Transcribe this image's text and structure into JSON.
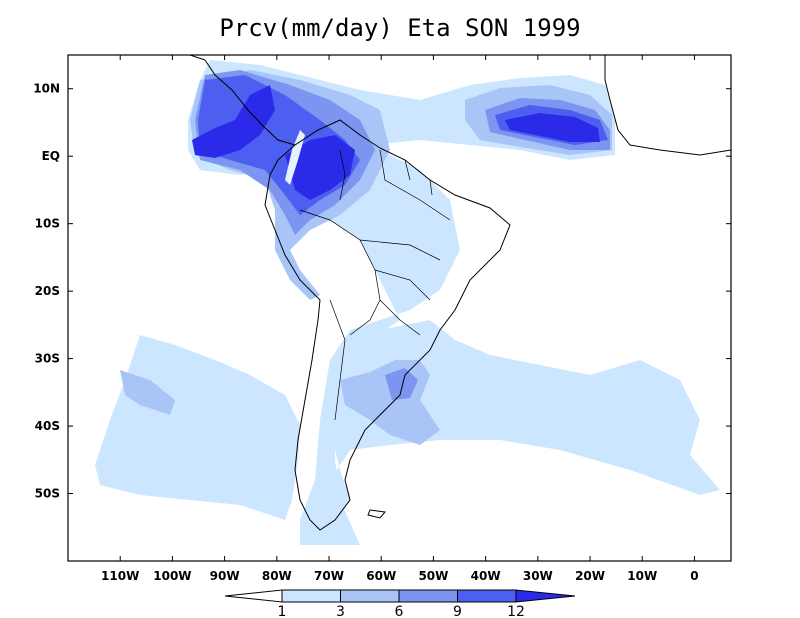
{
  "title": "Prcv(mm/day) Eta SON 1999",
  "map": {
    "lon_range": [
      -120,
      7
    ],
    "lat_range": [
      -60,
      15
    ],
    "lon_ticks": [
      {
        "lon": -110,
        "label": "110W"
      },
      {
        "lon": -100,
        "label": "100W"
      },
      {
        "lon": -90,
        "label": "90W"
      },
      {
        "lon": -80,
        "label": "80W"
      },
      {
        "lon": -70,
        "label": "70W"
      },
      {
        "lon": -60,
        "label": "60W"
      },
      {
        "lon": -50,
        "label": "50W"
      },
      {
        "lon": -40,
        "label": "40W"
      },
      {
        "lon": -30,
        "label": "30W"
      },
      {
        "lon": -20,
        "label": "20W"
      },
      {
        "lon": -10,
        "label": "10W"
      },
      {
        "lon": 0,
        "label": "0"
      }
    ],
    "lat_ticks": [
      {
        "lat": 10,
        "label": "10N"
      },
      {
        "lat": 0,
        "label": "EQ"
      },
      {
        "lat": -10,
        "label": "10S"
      },
      {
        "lat": -20,
        "label": "20S"
      },
      {
        "lat": -30,
        "label": "30S"
      },
      {
        "lat": -40,
        "label": "40S"
      },
      {
        "lat": -50,
        "label": "50S"
      }
    ]
  },
  "legend": {
    "levels": [
      1,
      3,
      6,
      9,
      12
    ],
    "labels": [
      "1",
      "3",
      "6",
      "9",
      "12"
    ],
    "colors": [
      "#ffffff",
      "#cce6ff",
      "#a9c4f7",
      "#7b95f0",
      "#4d5ff0",
      "#2a2ae8"
    ]
  }
}
